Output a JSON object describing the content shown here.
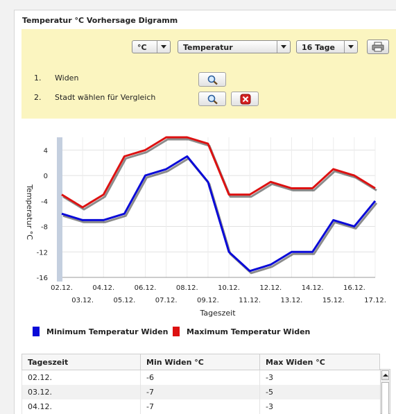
{
  "panel": {
    "title": "Temperatur °C Vorhersage Digramm"
  },
  "controls": {
    "unit_select": "°C",
    "parameter_select": "Temperatur",
    "days_select": "16 Tage",
    "print_icon": "printer-icon"
  },
  "steps": [
    {
      "number": "1.",
      "label": "Widen"
    },
    {
      "number": "2.",
      "label": "Stadt wählen für Vergleich"
    }
  ],
  "icons": {
    "search": "magnifier-icon",
    "remove": "red-x-icon"
  },
  "colors": {
    "min": "#0a0ad8",
    "max": "#dd1111",
    "controls_bg": "#fbf5c0"
  },
  "chart_data": {
    "type": "line",
    "xlabel": "Tageszeit",
    "ylabel": "Temperatur °C",
    "categories": [
      "02.12.",
      "03.12.",
      "04.12.",
      "05.12.",
      "06.12.",
      "07.12.",
      "08.12.",
      "09.12.",
      "10.12.",
      "11.12.",
      "12.12.",
      "13.12.",
      "14.12.",
      "15.12.",
      "16.12.",
      "17.12."
    ],
    "yticks": [
      4,
      0,
      -4,
      -8,
      -12,
      -16
    ],
    "ylim": [
      -16,
      6
    ],
    "grid": true,
    "series": [
      {
        "name": "Minimum Temperatur Widen",
        "color": "#0a0ad8",
        "values": [
          -6,
          -7,
          -7,
          -6,
          0,
          1,
          3,
          -1,
          -12,
          -15,
          -14,
          -12,
          -12,
          -7,
          -8,
          -4
        ]
      },
      {
        "name": "Maximum Temperatur Widen",
        "color": "#dd1111",
        "values": [
          -3,
          -5,
          -3,
          3,
          4,
          6,
          6,
          5,
          -3,
          -3,
          -1,
          -2,
          -2,
          1,
          0,
          -2
        ]
      }
    ],
    "legend_position": "bottom"
  },
  "table": {
    "headers": [
      "Tageszeit",
      "Min Widen °C",
      "Max Widen °C"
    ],
    "rows": [
      [
        "02.12.",
        "-6",
        "-3"
      ],
      [
        "03.12.",
        "-7",
        "-5"
      ],
      [
        "04.12.",
        "-7",
        "-3"
      ]
    ]
  }
}
